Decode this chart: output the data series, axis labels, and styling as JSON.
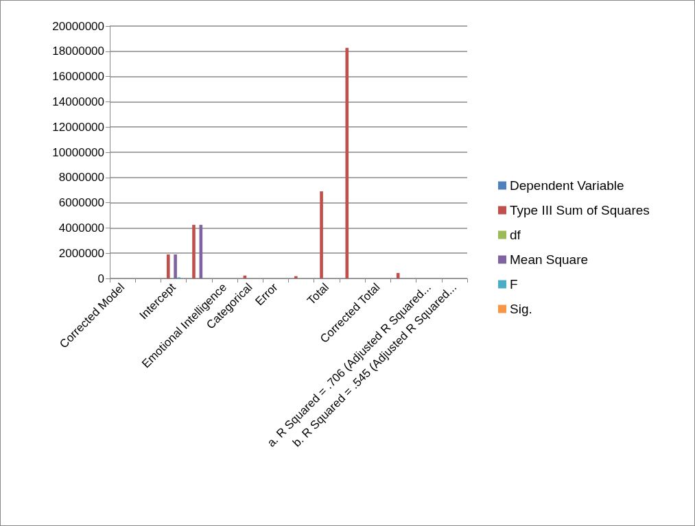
{
  "chart_data": {
    "type": "bar",
    "categories": [
      "Corrected Model",
      null,
      "Intercept",
      null,
      "Emotional Intelligence",
      "Categorical",
      "Error",
      null,
      "Total",
      null,
      "Corrected Total",
      null,
      "a. R Squared = .706 (Adjusted R Squared...",
      "b. R Squared = .545 (Adjusted R Squared..."
    ],
    "series": [
      {
        "name": "Dependent Variable",
        "color": "#4f81bd",
        "values": [
          null,
          null,
          null,
          null,
          null,
          null,
          null,
          null,
          null,
          null,
          null,
          null,
          null,
          null
        ]
      },
      {
        "name": "Type III Sum of Squares",
        "color": "#c0504d",
        "values": [
          null,
          null,
          1900000,
          4250000,
          null,
          230000,
          null,
          180000,
          6900000,
          18270000,
          null,
          430000,
          null,
          null
        ]
      },
      {
        "name": "df",
        "color": "#9bbb59",
        "values": [
          null,
          null,
          null,
          null,
          null,
          null,
          null,
          null,
          null,
          null,
          null,
          null,
          null,
          null
        ]
      },
      {
        "name": "Mean Square",
        "color": "#8064a2",
        "values": [
          null,
          null,
          1900000,
          4250000,
          null,
          null,
          null,
          null,
          null,
          null,
          null,
          null,
          null,
          null
        ]
      },
      {
        "name": "F",
        "color": "#4bacc6",
        "values": [
          null,
          null,
          90000,
          null,
          null,
          null,
          null,
          null,
          null,
          null,
          null,
          null,
          null,
          null
        ]
      },
      {
        "name": "Sig.",
        "color": "#f79646",
        "values": [
          null,
          null,
          null,
          null,
          null,
          null,
          null,
          null,
          null,
          null,
          null,
          null,
          null,
          null
        ]
      }
    ],
    "ylim": [
      0,
      20000000
    ],
    "yticks": [
      0,
      2000000,
      4000000,
      6000000,
      8000000,
      10000000,
      12000000,
      14000000,
      16000000,
      18000000,
      20000000
    ],
    "grid": "y",
    "legend": "right"
  }
}
